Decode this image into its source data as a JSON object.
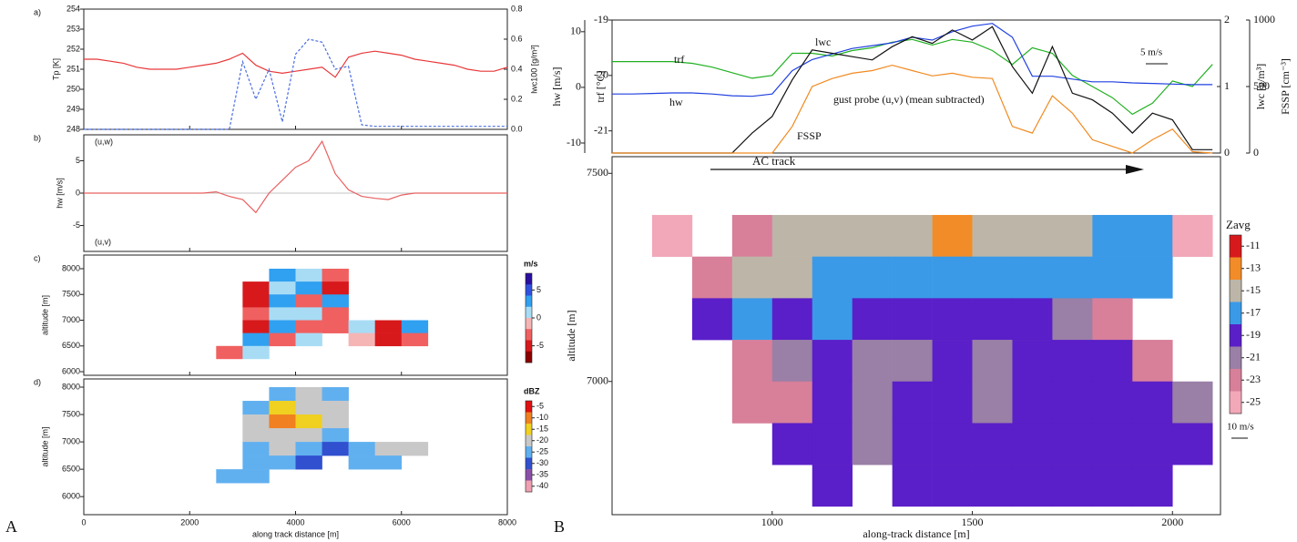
{
  "figure_labels": [
    "A",
    "B"
  ],
  "chart_data": [
    {
      "type": "line",
      "panel_label": "a)",
      "x": [
        0,
        250,
        500,
        750,
        1000,
        1250,
        1500,
        1750,
        2000,
        2250,
        2500,
        2750,
        3000,
        3250,
        3500,
        3750,
        4000,
        4250,
        4500,
        4750,
        5000,
        5250,
        5500,
        5750,
        6000,
        6250,
        6500,
        6750,
        7000,
        7250,
        7500,
        7750,
        8000
      ],
      "xlim": [
        0,
        8000
      ],
      "xticks": [
        0,
        2000,
        4000,
        6000,
        8000
      ],
      "ylim": [
        248,
        254
      ],
      "yticks": [
        248,
        249,
        250,
        251,
        252,
        253,
        254
      ],
      "ylabel": "Tp [K]",
      "y2lim": [
        0,
        0.8
      ],
      "y2ticks": [
        {
          "value": 0,
          "label": "0.0"
        },
        {
          "value": 0.2,
          "label": "0.2"
        },
        {
          "value": 0.4,
          "label": "0.4"
        },
        {
          "value": 0.6,
          "label": "0.6"
        },
        {
          "value": 0.8,
          "label": "0.8"
        }
      ],
      "y2label": "lwc100 [g/m³]",
      "series": [
        {
          "color": "#e8383a",
          "values": [
            251.5,
            251.5,
            251.4,
            251.3,
            251.1,
            251.0,
            251.0,
            251.0,
            251.1,
            251.2,
            251.3,
            251.5,
            251.8,
            251.2,
            250.9,
            250.8,
            250.9,
            251.0,
            251.1,
            250.6,
            251.6,
            251.8,
            251.9,
            251.8,
            251.7,
            251.5,
            251.4,
            251.3,
            251.2,
            251.0,
            250.9,
            250.9,
            251.1
          ]
        },
        {
          "color": "#4a6ee0",
          "axis": "y2",
          "style": "dashed",
          "values": [
            0,
            0,
            0,
            0,
            0,
            0,
            0,
            0,
            0,
            0,
            0,
            0,
            0.45,
            0.2,
            0.4,
            0.05,
            0.5,
            0.6,
            0.58,
            0.4,
            0.42,
            0.03,
            0.02,
            0.02,
            0.02,
            0.02,
            0.02,
            0.02,
            0.02,
            0.02,
            0.02,
            0.02,
            0.02
          ]
        }
      ]
    },
    {
      "type": "line",
      "panel_label": "b)",
      "upper_label": "(u,w)",
      "lower_label": "(u,v)",
      "x": [
        0,
        250,
        500,
        750,
        1000,
        1250,
        1500,
        1750,
        2000,
        2250,
        2500,
        2750,
        3000,
        3250,
        3500,
        3750,
        4000,
        4250,
        4500,
        4750,
        5000,
        5250,
        5500,
        5750,
        6000,
        6250,
        6500,
        6750,
        7000,
        7250,
        7500,
        7750,
        8000
      ],
      "xlim": [
        0,
        8000
      ],
      "xticks": [
        0,
        2000,
        4000,
        6000,
        8000
      ],
      "ylim": [
        -9,
        9
      ],
      "yticks": [
        -5,
        0,
        5
      ],
      "ylabel": "hw [m/s]",
      "series": [
        {
          "color": "#e86060",
          "values": [
            0,
            0,
            0,
            0,
            0,
            0,
            0,
            0,
            0,
            0,
            0.2,
            -0.5,
            -1,
            -3,
            0,
            2,
            4,
            5,
            8,
            3,
            0.5,
            -0.5,
            -0.8,
            -1,
            -0.3,
            0,
            0,
            0,
            0,
            0,
            0,
            0,
            0
          ]
        }
      ]
    },
    {
      "type": "heatmap",
      "panel_label": "c)",
      "xlim": [
        0,
        8000
      ],
      "xticks": [
        0,
        2000,
        4000,
        6000,
        8000
      ],
      "ylim": [
        5930,
        8265
      ],
      "yticks": [
        6000,
        6500,
        7000,
        7500,
        8000
      ],
      "ylabel": "altitude [m]",
      "xbins": [
        2500,
        3000,
        3500,
        4000,
        4500,
        5000,
        5500,
        6000,
        6500
      ],
      "ybins": [
        8000,
        7750,
        7500,
        7250,
        7000,
        6750,
        6500,
        6250
      ],
      "z": [
        [
          null,
          null,
          3,
          2,
          -3,
          null,
          null,
          null
        ],
        [
          null,
          -4,
          2,
          4,
          -5,
          null,
          null,
          null
        ],
        [
          null,
          -5,
          4,
          -2,
          3,
          null,
          null,
          null
        ],
        [
          null,
          -3,
          2,
          1,
          -2,
          null,
          null,
          null
        ],
        [
          null,
          -4,
          3,
          -3,
          -2,
          2,
          -5,
          3
        ],
        [
          null,
          3,
          -3,
          2,
          null,
          -1,
          -4,
          -2
        ],
        [
          -2,
          2,
          null,
          null,
          null,
          null,
          null,
          null
        ]
      ],
      "zlim": [
        -8,
        8
      ],
      "colors": [
        "#2b0fa0",
        "#3050e0",
        "#30a0f0",
        "#a8dcf5",
        "#f5b5b5",
        "#f06060",
        "#d7191c",
        "#8b0000"
      ],
      "colorbar_title": "m/s",
      "cticks": [
        5,
        0,
        -5
      ]
    },
    {
      "type": "heatmap",
      "panel_label": "d)",
      "xlim": [
        0,
        8000
      ],
      "xticks": [
        0,
        2000,
        4000,
        6000,
        8000
      ],
      "xlabel": "along track distance [m]",
      "ylim": [
        5670,
        8150
      ],
      "yticks": [
        6000,
        6500,
        7000,
        7500,
        8000
      ],
      "ylabel": "altitude [m]",
      "xbins": [
        2500,
        3000,
        3500,
        4000,
        4500,
        5000,
        5500,
        6000,
        6500
      ],
      "ybins": [
        8000,
        7750,
        7500,
        7250,
        7000,
        6750,
        6500,
        6250
      ],
      "z": [
        [
          null,
          null,
          -25,
          -22,
          -25,
          null,
          null,
          null
        ],
        [
          null,
          -25,
          -15,
          -20,
          -20,
          null,
          null,
          null
        ],
        [
          null,
          -20,
          -10,
          -15,
          -20,
          null,
          null,
          null
        ],
        [
          null,
          -20,
          -20,
          -20,
          -25,
          null,
          null,
          null
        ],
        [
          null,
          -25,
          -20,
          -25,
          -30,
          -25,
          -20,
          -20
        ],
        [
          null,
          -25,
          -25,
          -30,
          null,
          -25,
          -25,
          null
        ],
        [
          -25,
          -25,
          null,
          null,
          null,
          null,
          null,
          null
        ]
      ],
      "zlim": [
        -42.5,
        -2.5
      ],
      "colors": [
        "#e01010",
        "#f08020",
        "#f0d020",
        "#c8c8c8",
        "#60b0f0",
        "#3050d0",
        "#8a50a8",
        "#f0a0b0"
      ],
      "colorbar_title": "dBZ",
      "cticks": [
        -5,
        -10,
        -15,
        -20,
        -25,
        -30,
        -35,
        -40
      ]
    },
    {
      "type": "line",
      "annotation": "gust probe (u,v) (mean subtracted)",
      "scale_label": "5 m/s",
      "x": [
        600,
        650,
        700,
        750,
        800,
        850,
        900,
        950,
        1000,
        1050,
        1100,
        1150,
        1200,
        1250,
        1300,
        1350,
        1400,
        1450,
        1500,
        1550,
        1600,
        1650,
        1700,
        1750,
        1800,
        1850,
        1900,
        1950,
        2000,
        2050,
        2100
      ],
      "xlim": [
        600,
        2120
      ],
      "ylim": [
        -11.8,
        12.1
      ],
      "yticks": [
        10,
        0,
        -10
      ],
      "ylabel": "hw [m/s]",
      "y3lim": [
        -21.4,
        -19
      ],
      "y3ticks": [
        -19,
        -20,
        -21
      ],
      "y3label": "trf [°C]",
      "y2lim": [
        0,
        2
      ],
      "y2ticks": [
        2,
        1,
        0
      ],
      "y2label": "lwc [g/m³]",
      "y4lim": [
        0,
        1000
      ],
      "y4ticks": [
        1000,
        500,
        0
      ],
      "y4label": "FSSP [cm⁻³]",
      "series": [
        {
          "name": "trf",
          "color": "#20b020",
          "axis": "y3",
          "values": [
            -19.75,
            -19.75,
            -19.75,
            -19.75,
            -19.78,
            -19.85,
            -19.95,
            -20.05,
            -20.0,
            -19.6,
            -19.6,
            -19.65,
            -19.55,
            -19.5,
            -19.4,
            -19.35,
            -19.45,
            -19.35,
            -19.4,
            -19.55,
            -19.8,
            -19.5,
            -19.6,
            -20.0,
            -20.2,
            -20.4,
            -20.7,
            -20.5,
            -20.1,
            -20.2,
            -19.8
          ]
        },
        {
          "name": "hw",
          "color": "#2040e0",
          "values": [
            -1.2,
            -1.2,
            -1.1,
            -1.0,
            -1.0,
            -1.2,
            -1.5,
            -1.6,
            -1.2,
            3,
            5,
            6,
            7,
            7.5,
            8,
            9,
            8.5,
            10,
            11,
            11.5,
            9,
            2,
            2,
            1.5,
            1,
            1,
            0.8,
            0.7,
            0.6,
            0.5,
            0.5
          ]
        },
        {
          "name": "lwc",
          "color": "#111111",
          "axis": "y2",
          "values": [
            0,
            0,
            0,
            0,
            0,
            0,
            0,
            0.3,
            0.55,
            1.1,
            1.55,
            1.5,
            1.45,
            1.4,
            1.6,
            1.75,
            1.65,
            1.85,
            1.7,
            1.9,
            1.3,
            0.9,
            1.6,
            0.9,
            0.8,
            0.6,
            0.3,
            0.6,
            0.5,
            0.05,
            0.05
          ]
        },
        {
          "name": "FSSP",
          "color": "#f08a20",
          "axis": "y4",
          "values": [
            0,
            0,
            0,
            0,
            0,
            0,
            0,
            0,
            0,
            200,
            500,
            560,
            600,
            620,
            660,
            620,
            580,
            600,
            570,
            560,
            200,
            150,
            430,
            300,
            100,
            50,
            0,
            100,
            180,
            10,
            0
          ]
        }
      ]
    },
    {
      "type": "heatmap",
      "track_label": "AC track",
      "scale_label": "10 m/s",
      "xlim": [
        600,
        2120
      ],
      "xticks": [
        1000,
        1500,
        2000
      ],
      "xlabel": "along-track distance [m]",
      "ylim": [
        6680,
        7540
      ],
      "yticks": [
        7000,
        7500
      ],
      "ylabel": "altitude [m]",
      "xbins": [
        700,
        800,
        900,
        1000,
        1100,
        1200,
        1300,
        1400,
        1500,
        1600,
        1700,
        1800,
        1900,
        2000,
        2100
      ],
      "ybins": [
        7400,
        7300,
        7200,
        7100,
        7000,
        6900,
        6800,
        6700
      ],
      "z": [
        [
          -25,
          null,
          -23,
          -15,
          -15,
          -15,
          -15,
          -13,
          -15,
          -15,
          -15,
          -17,
          -17,
          -25
        ],
        [
          null,
          -23,
          -15,
          -15,
          -17,
          -17,
          -17,
          -17,
          -17,
          -17,
          -17,
          -17,
          -17,
          null
        ],
        [
          null,
          -19,
          -17,
          -19,
          -17,
          -19,
          -19,
          -19,
          -19,
          -19,
          -21,
          -23,
          null,
          null
        ],
        [
          null,
          null,
          -23,
          -21,
          -19,
          -21,
          -21,
          -19,
          -21,
          -19,
          -19,
          -19,
          -23,
          null
        ],
        [
          null,
          null,
          -23,
          -23,
          -19,
          -21,
          -19,
          -19,
          -21,
          -19,
          -19,
          -19,
          -19,
          -21
        ],
        [
          null,
          null,
          null,
          -19,
          -19,
          -21,
          -19,
          -19,
          -19,
          -19,
          -19,
          -19,
          -19,
          -19
        ],
        [
          null,
          null,
          null,
          null,
          -19,
          null,
          -19,
          -19,
          -19,
          -19,
          -19,
          -19,
          -19,
          null
        ]
      ],
      "zlim": [
        -26,
        -10
      ],
      "colors": [
        "#d7191c",
        "#f28c28",
        "#bdb6a8",
        "#3a9ae8",
        "#5a1fc8",
        "#9a7fa6",
        "#d87f9a",
        "#f2a8b8"
      ],
      "colorbar_title": "Zavg",
      "cticks": [
        -11,
        -13,
        -15,
        -17,
        -19,
        -21,
        -23,
        -25
      ]
    }
  ]
}
